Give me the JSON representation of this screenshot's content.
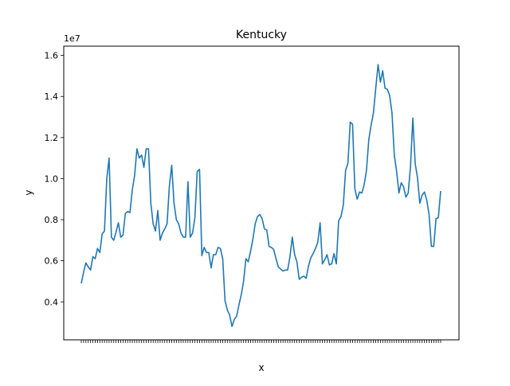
{
  "chart_data": {
    "type": "line",
    "title": "Kentucky",
    "xlabel": "x",
    "ylabel": "y",
    "y_offset_label": "1e7",
    "ylim": [
      2150000,
      16450000
    ],
    "yticks": [
      {
        "value": 4000000,
        "label": "0.4"
      },
      {
        "value": 6000000,
        "label": "0.6"
      },
      {
        "value": 8000000,
        "label": "0.8"
      },
      {
        "value": 10000000,
        "label": "1.0"
      },
      {
        "value": 12000000,
        "label": "1.2"
      },
      {
        "value": 14000000,
        "label": "1.4"
      },
      {
        "value": 16000000,
        "label": "1.6"
      }
    ],
    "grid": false,
    "line_color": "#1f77b4",
    "series": [
      {
        "values": [
          4900000,
          5450000,
          5900000,
          5700000,
          5550000,
          6200000,
          6100000,
          6600000,
          6400000,
          7300000,
          7450000,
          10000000,
          11000000,
          7150000,
          7000000,
          7400000,
          7850000,
          7150000,
          7250000,
          8300000,
          8400000,
          8350000,
          9450000,
          10150000,
          11450000,
          11000000,
          11150000,
          10550000,
          11450000,
          11450000,
          8800000,
          7800000,
          7450000,
          8450000,
          7000000,
          7350000,
          7550000,
          7800000,
          9650000,
          10650000,
          8800000,
          8000000,
          7800000,
          7350000,
          7150000,
          7150000,
          9850000,
          7150000,
          7350000,
          8100000,
          10350000,
          10450000,
          6250000,
          6650000,
          6400000,
          6400000,
          5650000,
          6300000,
          6300000,
          6650000,
          6600000,
          6100000,
          4050000,
          3600000,
          3350000,
          2800000,
          3150000,
          3300000,
          3850000,
          4350000,
          5000000,
          6100000,
          5950000,
          6450000,
          7050000,
          7800000,
          8150000,
          8250000,
          8050000,
          7550000,
          7500000,
          6700000,
          6650000,
          6550000,
          6100000,
          5700000,
          5600000,
          5500000,
          5550000,
          5550000,
          6200000,
          7150000,
          6300000,
          5950000,
          5100000,
          5200000,
          5250000,
          5150000,
          5750000,
          6150000,
          6350000,
          6600000,
          6900000,
          7850000,
          5850000,
          6050000,
          6300000,
          5800000,
          5850000,
          6350000,
          5850000,
          7950000,
          8150000,
          8700000,
          10400000,
          10750000,
          12750000,
          12650000,
          9500000,
          9000000,
          9350000,
          9300000,
          9700000,
          10400000,
          11900000,
          12600000,
          13200000,
          14400000,
          15550000,
          14700000,
          15250000,
          14400000,
          14350000,
          14050000,
          13200000,
          11150000,
          10350000,
          9300000,
          9800000,
          9600000,
          9100000,
          9300000,
          10600000,
          12950000,
          10750000,
          10050000,
          8800000,
          9200000,
          9350000,
          8950000,
          8250000,
          6700000,
          6700000,
          8050000,
          8100000,
          9400000
        ]
      }
    ],
    "x_tick_labels_note": ""
  }
}
